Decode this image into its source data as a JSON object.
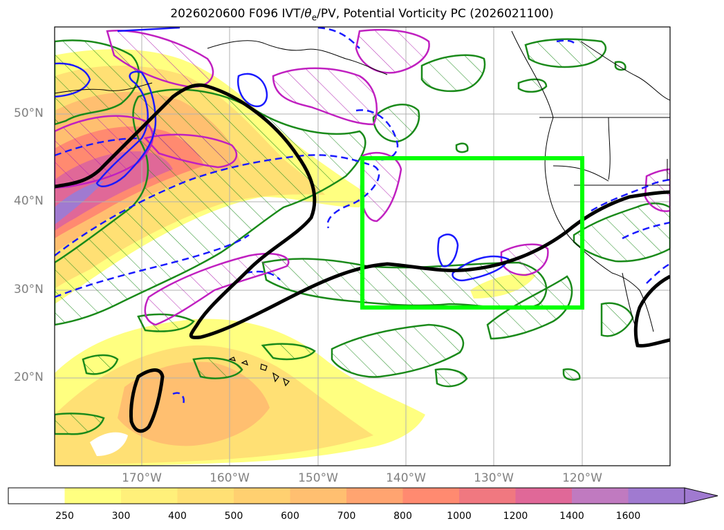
{
  "title": {
    "prefix": "2026020600 F096 IVT/",
    "theta_symbol": "θ",
    "theta_sub": "e",
    "suffix": "/PV, Potential Vorticity PC (2026021100)"
  },
  "map": {
    "lat_labels": [
      "50°N",
      "40°N",
      "30°N",
      "20°N"
    ],
    "lon_labels": [
      "170°W",
      "160°W",
      "150°W",
      "140°W",
      "130°W",
      "120°W"
    ],
    "analysis_box": {
      "lon_range": [
        "145°W",
        "120°W"
      ],
      "lat_range": [
        "28°N",
        "45°N"
      ],
      "color": "#00ff00"
    }
  },
  "colorbar": {
    "labels": [
      "250",
      "300",
      "400",
      "500",
      "600",
      "700",
      "800",
      "1000",
      "1200",
      "1400",
      "1600"
    ],
    "colors": [
      "#ffffff",
      "#ffff80",
      "#fff07a",
      "#ffe074",
      "#ffd070",
      "#ffbf70",
      "#ffa470",
      "#ff8a70",
      "#f07880",
      "#e06898",
      "#c07ac0",
      "#a07ad0"
    ]
  }
}
